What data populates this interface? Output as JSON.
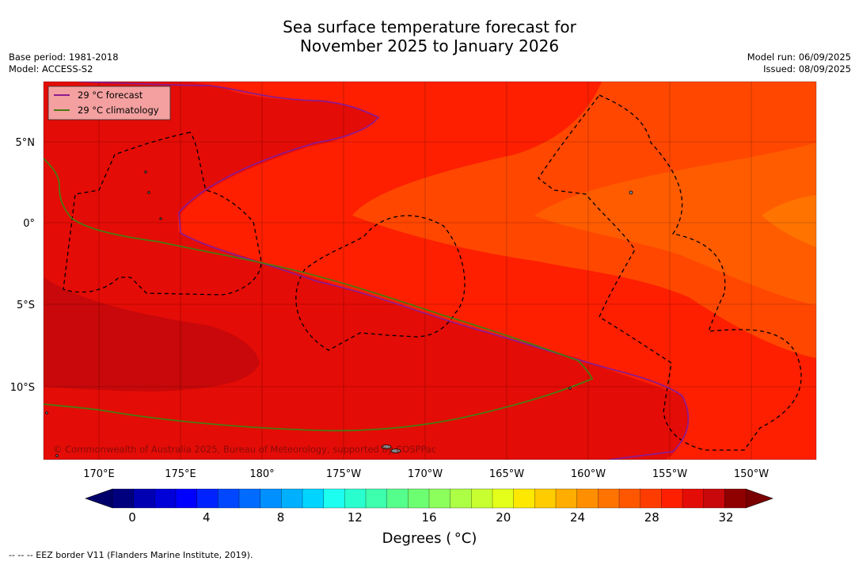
{
  "title": {
    "line1": "Sea surface temperature forecast for",
    "line2": "November 2025 to January 2026"
  },
  "meta_left": {
    "base_period": "Base period: 1981-2018",
    "model": "Model: ACCESS-S2"
  },
  "meta_right": {
    "model_run": "Model run: 06/09/2025",
    "issued": "Issued: 08/09/2025"
  },
  "legend": {
    "forecast_label": "29 °C  forecast",
    "climatology_label": "29 °C  climatology",
    "forecast_color": "#8e1a8e",
    "climatology_color": "#4a7a12"
  },
  "map": {
    "lat_labels": [
      "5°N",
      "0°",
      "5°S",
      "10°S"
    ],
    "lon_labels": [
      "170°E",
      "175°E",
      "180°",
      "175°W",
      "170°W",
      "165°W",
      "160°W",
      "155°W",
      "150°W"
    ],
    "copyright": "© Commonwealth of Australia 2025, Bureau of Meteorology, supported by COSPPac",
    "colors": {
      "warm_29_30": "#e40c06",
      "warm_30_31": "#c8080a",
      "band_28_29": "#fd1f00",
      "band_27_28": "#ff4700",
      "band_26_27": "#ff7300"
    }
  },
  "colorbar": {
    "ticks": [
      "0",
      "4",
      "8",
      "12",
      "16",
      "20",
      "24",
      "28",
      "32"
    ],
    "units_label": "Degrees ( °C)",
    "colors": [
      "#00007f",
      "#0000b2",
      "#0000d8",
      "#0000ff",
      "#0022ff",
      "#0047ff",
      "#006cff",
      "#0090ff",
      "#00b0ff",
      "#00d4ff",
      "#1cfff0",
      "#29ffce",
      "#3dffad",
      "#55ff8c",
      "#6dff72",
      "#8dff5c",
      "#acff45",
      "#c8ff30",
      "#e4ff1a",
      "#ffe800",
      "#ffcc00",
      "#ffad00",
      "#ff8f00",
      "#ff7300",
      "#ff5700",
      "#ff3c00",
      "#fd1f00",
      "#e40c06",
      "#c8080a",
      "#8f0000"
    ],
    "low_color": "#00006b",
    "high_color": "#7a0000"
  },
  "footer": {
    "eez_note": "--  --  -- EEZ border V11 (Flanders Marine Institute, 2019)."
  }
}
